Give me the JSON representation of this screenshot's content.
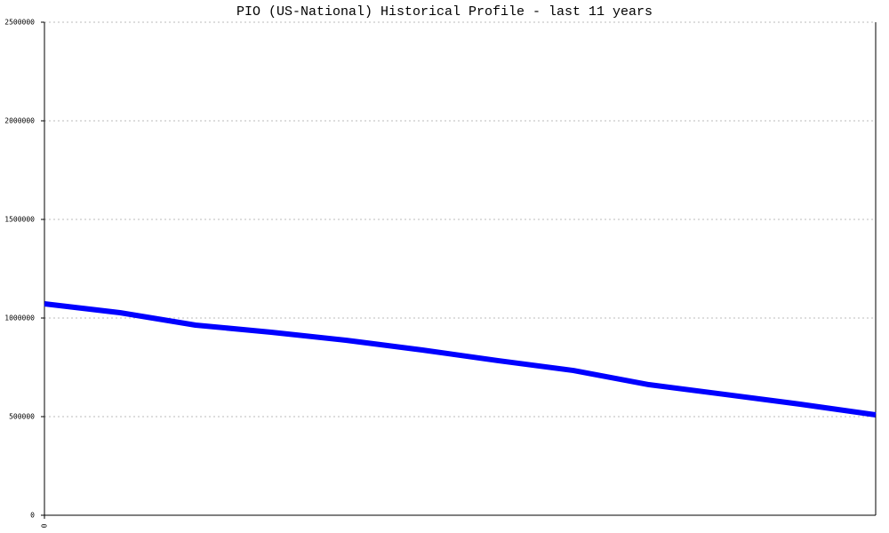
{
  "chart_data": {
    "type": "line",
    "title": "PIO (US-National) Historical Profile - last 11 years",
    "x": [
      0,
      1,
      2,
      3,
      4,
      5,
      6,
      7,
      8,
      9,
      10,
      11
    ],
    "series": [
      {
        "name": "PIO",
        "color": "#0000ff",
        "values": [
          1072000,
          1027000,
          964000,
          928000,
          887000,
          838000,
          784000,
          734000,
          662000,
          613000,
          563000,
          509000
        ]
      }
    ],
    "xlim": [
      0,
      11
    ],
    "xticks": [
      0
    ],
    "ylim": [
      0,
      2500000
    ],
    "yticks": [
      0,
      500000,
      1000000,
      1500000,
      2000000,
      2500000
    ],
    "grid": true
  }
}
